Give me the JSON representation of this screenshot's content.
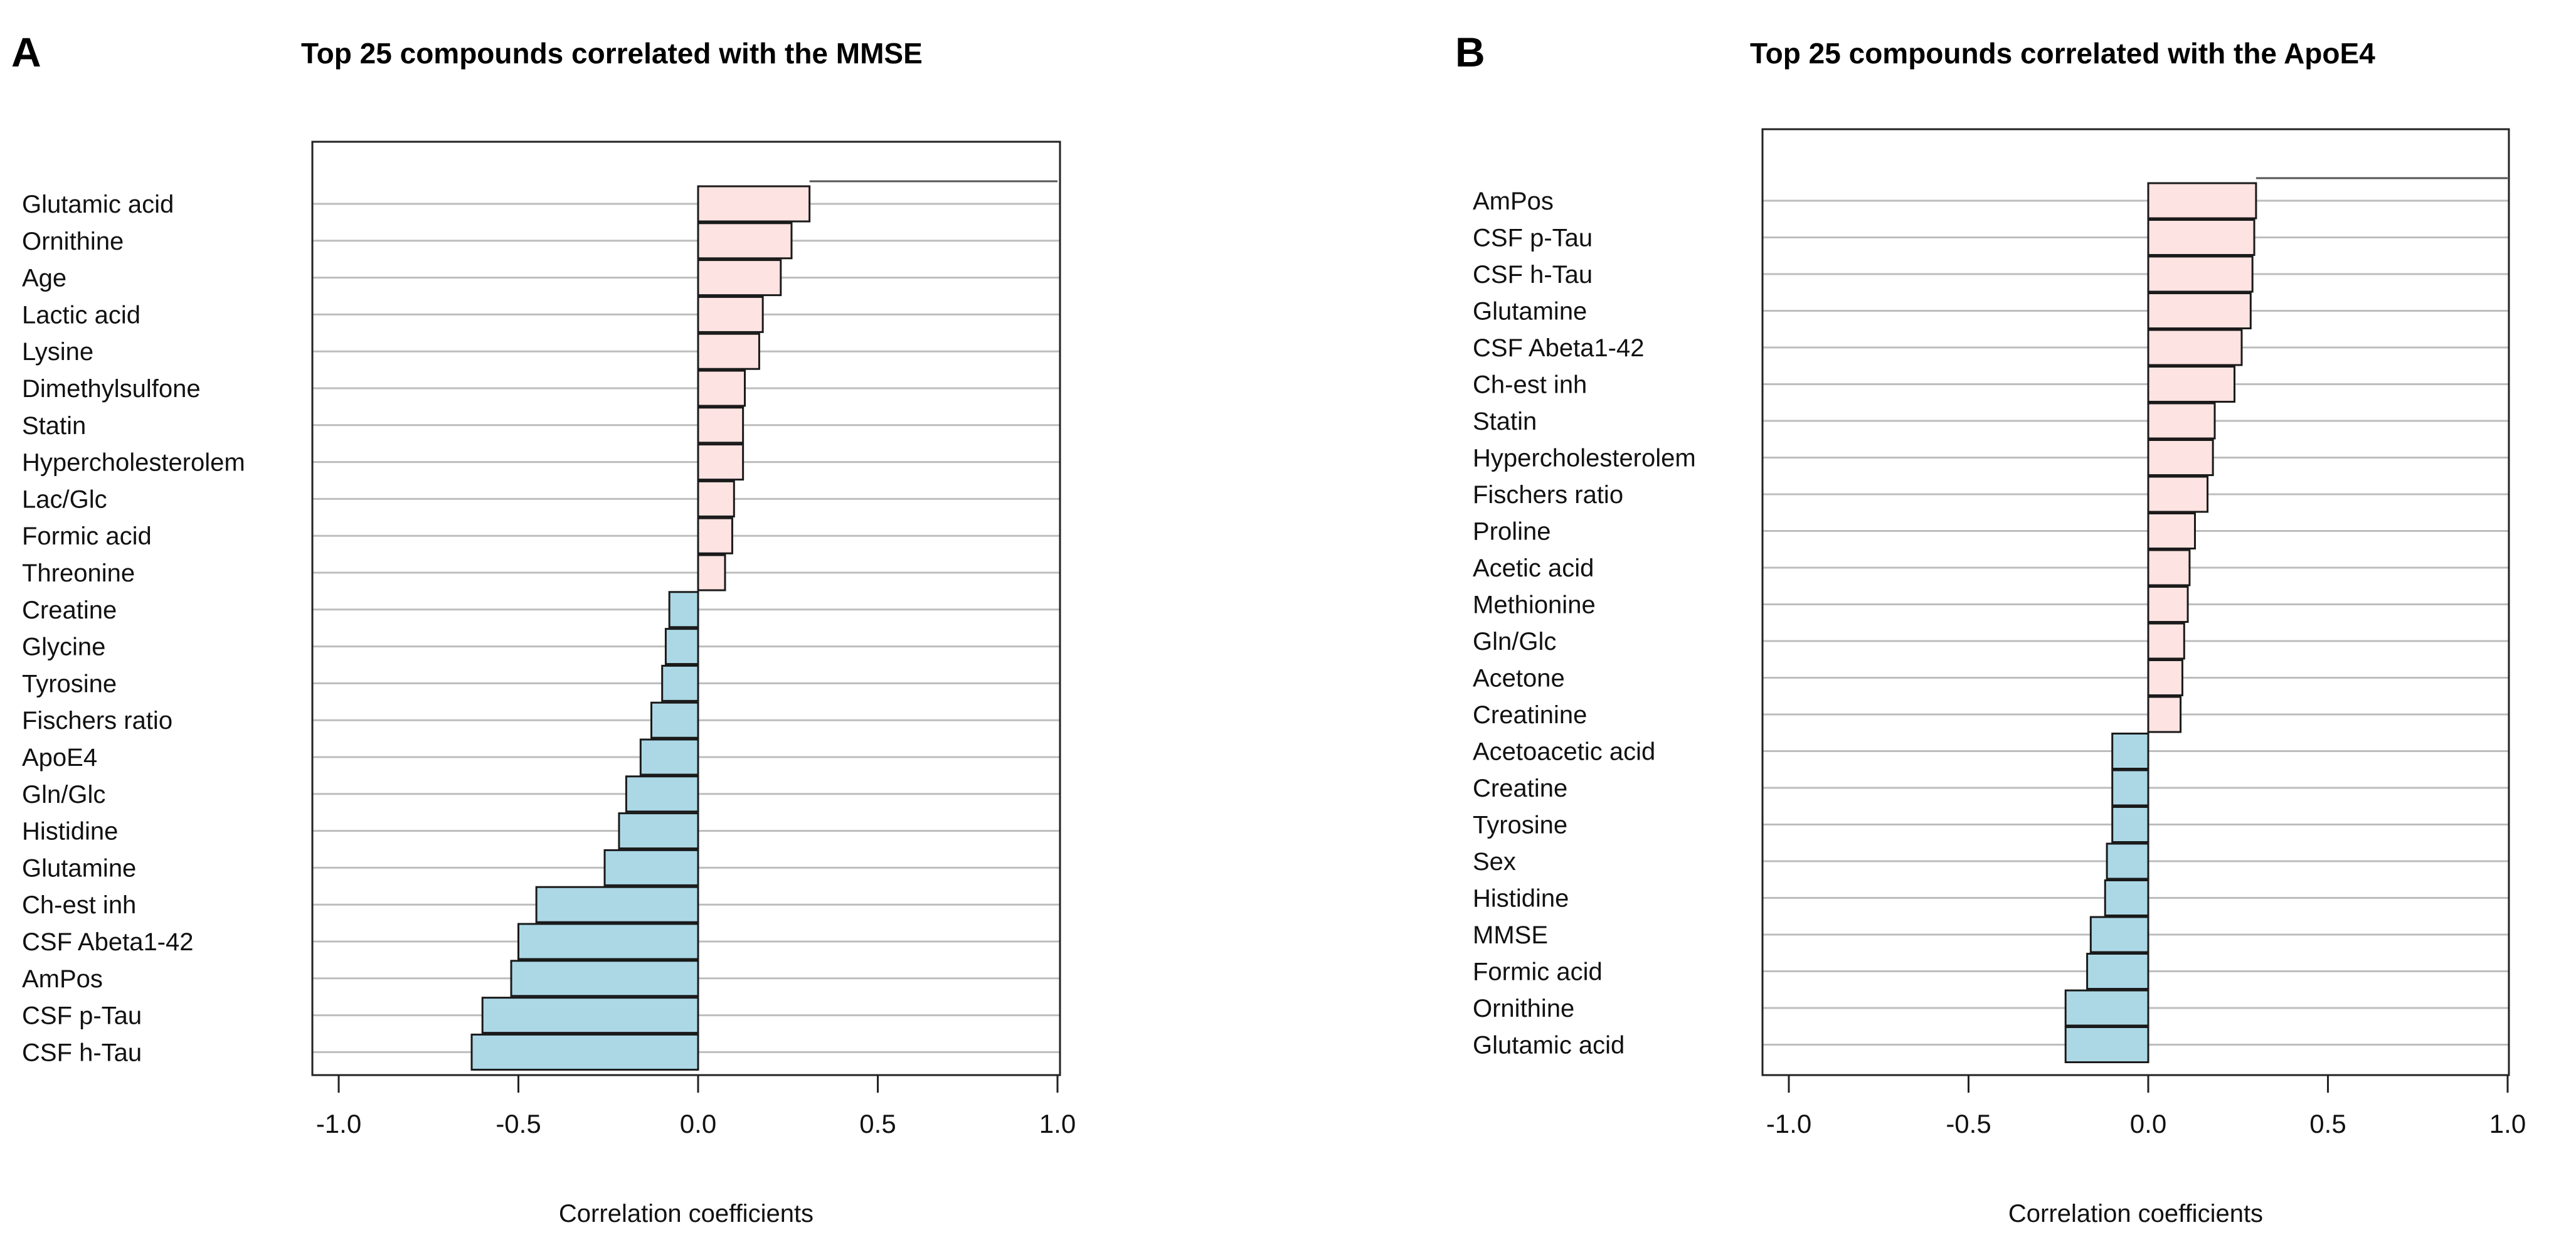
{
  "chart_data": [
    {
      "panel": "A",
      "type": "bar",
      "orientation": "horizontal",
      "title": "Top 25 compounds correlated with the MMSE",
      "xlabel": "Correlation coefficients",
      "ylabel": "",
      "xlim": [
        -1.1,
        1.1
      ],
      "xticks": [
        "-1.0",
        "-0.5",
        "0.0",
        "0.5",
        "1.0"
      ],
      "xtick_values": [
        -1.0,
        -0.5,
        0.0,
        0.5,
        1.0
      ],
      "grid": true,
      "reference_value": 1.0,
      "positive_color": "#fde3e1",
      "negative_color": "#acd8e6",
      "categories": [
        "Glutamic acid",
        "Ornithine",
        "Age",
        "Lactic acid",
        "Lysine",
        "Dimethylsulfone",
        "Statin",
        "Hypercholesterolem",
        "Lac/Glc",
        "Formic acid",
        "Threonine",
        "Creatine",
        "Glycine",
        "Tyrosine",
        "Fischers ratio",
        "ApoE4",
        "Gln/Glc",
        "Histidine",
        "Glutamine",
        "Ch-est inh",
        "CSF Abeta1-42",
        "AmPos",
        "CSF p-Tau",
        "CSF h-Tau"
      ],
      "values": [
        0.31,
        0.26,
        0.23,
        0.18,
        0.17,
        0.13,
        0.125,
        0.125,
        0.1,
        0.095,
        0.075,
        -0.08,
        -0.09,
        -0.1,
        -0.13,
        -0.16,
        -0.2,
        -0.22,
        -0.26,
        -0.45,
        -0.5,
        -0.52,
        -0.6,
        -0.63
      ]
    },
    {
      "panel": "B",
      "type": "bar",
      "orientation": "horizontal",
      "title": "Top 25 compounds correlated with the ApoE4",
      "xlabel": "Correlation coefficients",
      "ylabel": "",
      "xlim": [
        -1.1,
        1.1
      ],
      "xticks": [
        "-1.0",
        "-0.5",
        "0.0",
        "0.5",
        "1.0"
      ],
      "xtick_values": [
        -1.0,
        -0.5,
        0.0,
        0.5,
        1.0
      ],
      "grid": true,
      "reference_value": 1.0,
      "positive_color": "#fde3e1",
      "negative_color": "#acd8e6",
      "categories": [
        "AmPos",
        "CSF p-Tau",
        "CSF h-Tau",
        "Glutamine",
        "CSF Abeta1-42",
        "Ch-est inh",
        "Statin",
        "Hypercholesterolem",
        "Fischers ratio",
        "Proline",
        "Acetic acid",
        "Methionine",
        "Gln/Glc",
        "Acetone",
        "Creatinine",
        "Acetoacetic acid",
        "Creatine",
        "Tyrosine",
        "Sex",
        "Histidine",
        "MMSE",
        "Formic acid",
        "Ornithine",
        "Glutamic acid"
      ],
      "values": [
        0.3,
        0.295,
        0.29,
        0.285,
        0.26,
        0.24,
        0.185,
        0.18,
        0.165,
        0.13,
        0.115,
        0.11,
        0.1,
        0.095,
        0.09,
        -0.1,
        -0.1,
        -0.1,
        -0.115,
        -0.12,
        -0.16,
        -0.17,
        -0.23,
        -0.23
      ]
    }
  ]
}
